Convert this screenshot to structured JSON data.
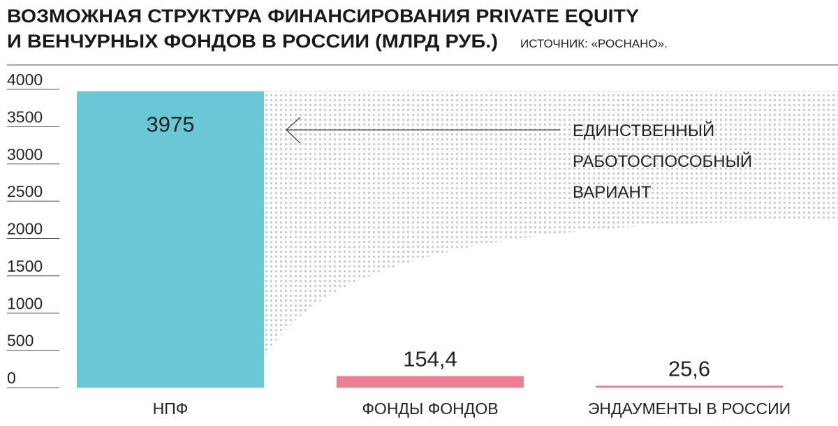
{
  "chart_data": {
    "type": "bar",
    "title": [
      "ВОЗМОЖНАЯ СТРУКТУРА ФИНАНСИРОВАНИЯ PRIVATE EQUITY",
      "И ВЕНЧУРНЫХ ФОНДОВ В РОССИИ (МЛРД РУБ.)"
    ],
    "source": "ИСТОЧНИК: «РОСНАНО».",
    "categories": [
      "НПФ",
      "ФОНДЫ ФОНДОВ",
      "ЭНДАУМЕНТЫ В РОССИИ"
    ],
    "values": [
      3975,
      154.4,
      25.6
    ],
    "value_labels": [
      "3975",
      "154,4",
      "25,6"
    ],
    "colors": [
      "#6ac8d6",
      "#ee7f93",
      "#ee7f93"
    ],
    "ylim": [
      0,
      4000
    ],
    "yticks": [
      0,
      500,
      1000,
      1500,
      2000,
      2500,
      3000,
      3500,
      4000
    ],
    "annotation": [
      "ЕДИНСТВЕННЫЙ",
      "РАБОТОСПОСОБНЫЙ",
      "ВАРИАНТ"
    ]
  }
}
